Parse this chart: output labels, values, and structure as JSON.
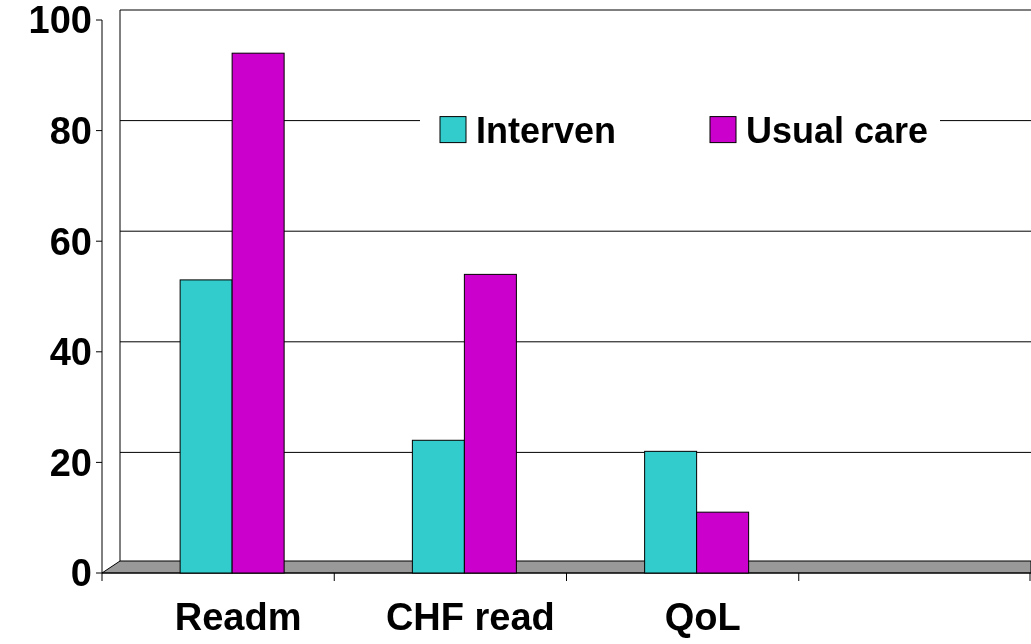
{
  "chart_data": {
    "type": "bar",
    "categories": [
      "Readm",
      "CHF read",
      "QoL",
      null
    ],
    "series": [
      {
        "name": "Interven",
        "color": "#33cccc",
        "values": [
          53,
          24,
          22,
          null
        ]
      },
      {
        "name": "Usual care",
        "color": "#cc00cc",
        "values": [
          94,
          54,
          11,
          null
        ]
      }
    ],
    "ylim": [
      0,
      100
    ],
    "yticks": [
      0,
      20,
      40,
      60,
      80,
      100
    ],
    "grid": "y",
    "legend": "top right"
  }
}
